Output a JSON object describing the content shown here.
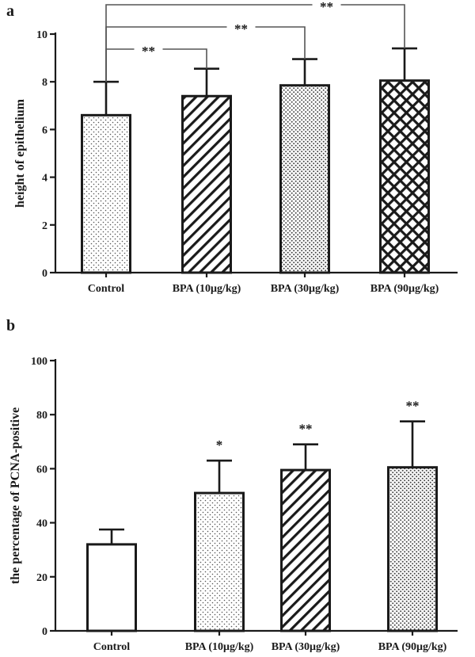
{
  "chart_data": [
    {
      "panel_label": "a",
      "type": "bar",
      "ylabel": "height of epithelium",
      "xlabel": "",
      "ylim": [
        0,
        10
      ],
      "yticks": [
        0,
        2,
        4,
        6,
        8,
        10
      ],
      "categories": [
        "Control",
        "BPA (10μg/kg)",
        "BPA (30μg/kg)",
        "BPA (90μg/kg)"
      ],
      "values": [
        6.6,
        7.4,
        7.85,
        8.05
      ],
      "errors": [
        1.4,
        1.15,
        1.1,
        1.35
      ],
      "fills": [
        "dots-fine",
        "diagonal-back",
        "dots-dense",
        "crosshatch"
      ],
      "comparisons": [
        {
          "from": 0,
          "to": 1,
          "label": "**"
        },
        {
          "from": 0,
          "to": 2,
          "label": "**"
        },
        {
          "from": 0,
          "to": 3,
          "label": "**"
        }
      ]
    },
    {
      "panel_label": "b",
      "type": "bar",
      "ylabel": "the percentage of PCNA-positive",
      "xlabel": "",
      "ylim": [
        0,
        100
      ],
      "yticks": [
        0,
        20,
        40,
        60,
        80,
        100
      ],
      "categories": [
        "Control",
        "BPA (10μg/kg)",
        "BPA (30μg/kg)",
        "BPA (90μg/kg)"
      ],
      "values": [
        32,
        51,
        59.5,
        60.5
      ],
      "errors": [
        5.5,
        12,
        9.5,
        17
      ],
      "fills": [
        "none",
        "dots-fine",
        "diagonal-back",
        "dots-dense"
      ],
      "significance": [
        "",
        "*",
        "**",
        "**"
      ]
    }
  ]
}
